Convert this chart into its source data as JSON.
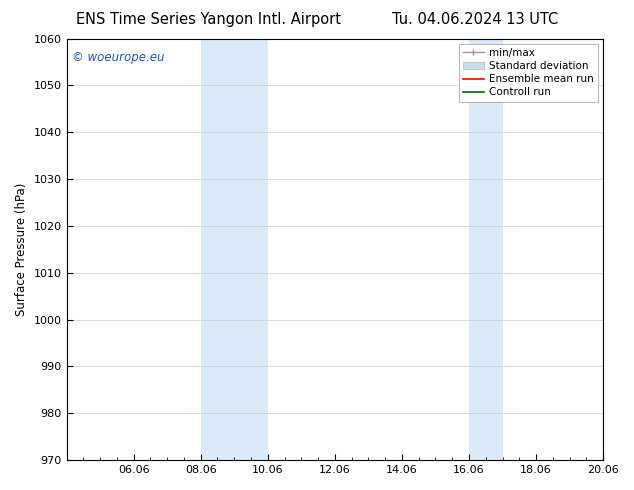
{
  "title_left": "ENS Time Series Yangon Intl. Airport",
  "title_right": "Tu. 04.06.2024 13 UTC",
  "ylabel": "Surface Pressure (hPa)",
  "ylim": [
    970,
    1060
  ],
  "yticks": [
    970,
    980,
    990,
    1000,
    1010,
    1020,
    1030,
    1040,
    1050,
    1060
  ],
  "xlim": [
    0,
    16
  ],
  "xtick_labels": [
    "06.06",
    "08.06",
    "10.06",
    "12.06",
    "14.06",
    "16.06",
    "18.06",
    "20.06"
  ],
  "xtick_positions": [
    2,
    4,
    6,
    8,
    10,
    12,
    14,
    16
  ],
  "shaded_regions": [
    {
      "x_start": 4,
      "x_end": 6,
      "color": "#daeaf8"
    },
    {
      "x_start": 12,
      "x_end": 13,
      "color": "#daeaf8"
    }
  ],
  "watermark_text": "© woeurope.eu",
  "watermark_color": "#2255bb",
  "legend_entries": [
    {
      "label": "min/max",
      "color": "#999999"
    },
    {
      "label": "Standard deviation",
      "color": "#ccdde8"
    },
    {
      "label": "Ensemble mean run",
      "color": "red"
    },
    {
      "label": "Controll run",
      "color": "green"
    }
  ],
  "background_color": "#ffffff",
  "grid_color": "#cccccc",
  "title_fontsize": 10.5,
  "axis_label_fontsize": 8.5,
  "tick_fontsize": 8
}
